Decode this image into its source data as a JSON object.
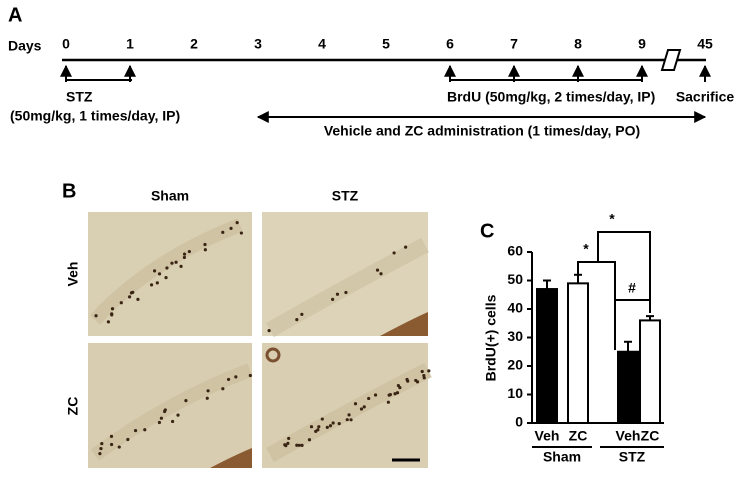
{
  "panel_a": {
    "label": "A",
    "days_label": "Days",
    "days": [
      0,
      1,
      2,
      3,
      4,
      5,
      6,
      7,
      8,
      9,
      45
    ],
    "stz_label": "STZ",
    "stz_dose": "(50mg/kg, 1 times/day, IP)",
    "brdu_label": "BrdU (50mg/kg, 2 times/day, IP)",
    "sacrifice_label": "Sacrifice",
    "vehicle_label": "Vehicle and ZC administration (1 times/day, PO)"
  },
  "panel_b": {
    "label": "B",
    "columns": [
      "Sham",
      "STZ"
    ],
    "rows": [
      "Veh",
      "ZC"
    ]
  },
  "chart_data": {
    "type": "bar",
    "panel_label": "C",
    "ylabel": "BrdU(+) cells",
    "categories": [
      "Sham",
      "STZ"
    ],
    "series": [
      {
        "name": "Veh",
        "color": "#000000",
        "values": [
          47,
          25
        ],
        "errors": [
          3,
          3.5
        ]
      },
      {
        "name": "ZC",
        "color": "#ffffff",
        "values": [
          49,
          36
        ],
        "errors": [
          3,
          1.5
        ]
      }
    ],
    "ylim": [
      0,
      60
    ],
    "yticks": [
      0,
      10,
      20,
      30,
      40,
      50,
      60
    ],
    "annotations": [
      "*",
      "*",
      "#"
    ]
  }
}
